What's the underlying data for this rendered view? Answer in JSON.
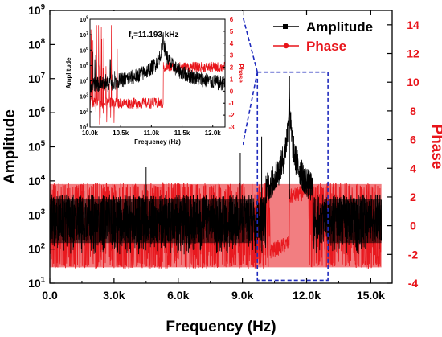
{
  "chart_data": {
    "type": "line",
    "xlabel": "Frequency (Hz)",
    "ylabel_left": "Amplitude",
    "ylabel_right": "Phase",
    "y_left_scale": "log",
    "xlim": [
      0,
      16000
    ],
    "ylim_left": [
      10,
      1000000000
    ],
    "ylim_right": [
      -4,
      15
    ],
    "x_ticks": [
      0,
      3000,
      6000,
      9000,
      12000,
      15000
    ],
    "x_tick_labels": [
      "0.0",
      "3.0k",
      "6.0k",
      "9.0k",
      "12.0k",
      "15.0k"
    ],
    "y_left_ticks": [
      10,
      100,
      1000,
      10000,
      100000,
      1000000,
      10000000,
      100000000,
      1000000000
    ],
    "y_left_tick_labels": [
      {
        "base": "10",
        "exp": "1"
      },
      {
        "base": "10",
        "exp": "2"
      },
      {
        "base": "10",
        "exp": "3"
      },
      {
        "base": "10",
        "exp": "4"
      },
      {
        "base": "10",
        "exp": "5"
      },
      {
        "base": "10",
        "exp": "6"
      },
      {
        "base": "10",
        "exp": "7"
      },
      {
        "base": "10",
        "exp": "8"
      },
      {
        "base": "10",
        "exp": "9"
      }
    ],
    "y_right_ticks": [
      -4,
      -2,
      0,
      2,
      4,
      6,
      8,
      10,
      12,
      14
    ],
    "y_right_tick_labels": [
      "-4",
      "-2",
      "0",
      "2",
      "4",
      "6",
      "8",
      "10",
      "12",
      "14"
    ],
    "legend": {
      "placement": "top-right",
      "items": [
        {
          "label": "Amplitude",
          "color": "#000000",
          "marker": "square"
        },
        {
          "label": "Phase",
          "color": "#e8141a",
          "marker": "circle"
        }
      ]
    },
    "series": [
      {
        "name": "Amplitude",
        "axis": "left",
        "color": "#000000",
        "noise_floor_band": [
          70,
          4000
        ],
        "resonance_peak": {
          "x": 11193,
          "y": 12000000
        },
        "spikes": [
          [
            1600,
            5000
          ],
          [
            4500,
            25000
          ],
          [
            8900,
            90000
          ],
          [
            9900,
            200000
          ]
        ]
      },
      {
        "name": "Phase",
        "axis": "right",
        "color": "#e8141a",
        "band_below_resonance": [
          -3,
          3
        ],
        "band_above_resonance": [
          -3,
          3
        ],
        "resonance_x": 11193
      }
    ],
    "zoom_box": {
      "x_range": [
        9700,
        13000
      ],
      "y_range_right": [
        -3.8,
        10.7
      ]
    },
    "inset": {
      "annotation": {
        "base": "f",
        "sub": "r",
        "text": "=11.193 kHz"
      },
      "xlabel": "Frequency (Hz)",
      "ylabel_left": "Amplitude",
      "ylabel_right": "Phase",
      "xlim": [
        10000,
        12200
      ],
      "ylim_left": [
        10,
        100000000
      ],
      "ylim_right": [
        -3,
        6
      ],
      "x_ticks": [
        10000,
        10500,
        11000,
        11500,
        12000
      ],
      "x_tick_labels": [
        "10.0k",
        "10.5k",
        "11.0k",
        "11.5k",
        "12.0k"
      ],
      "y_left_ticks": [
        10,
        100,
        1000,
        10000,
        100000,
        1000000,
        10000000,
        100000000
      ],
      "y_left_tick_labels": [
        {
          "base": "10",
          "exp": "1"
        },
        {
          "base": "10",
          "exp": "2"
        },
        {
          "base": "10",
          "exp": "3"
        },
        {
          "base": "10",
          "exp": "4"
        },
        {
          "base": "10",
          "exp": "5"
        },
        {
          "base": "10",
          "exp": "6"
        },
        {
          "base": "10",
          "exp": "7"
        },
        {
          "base": "10",
          "exp": "8"
        }
      ],
      "y_right_ticks": [
        -3,
        -2,
        -1,
        0,
        1,
        2,
        3,
        4,
        5,
        6
      ],
      "y_right_tick_labels": [
        "-3",
        "-2",
        "-1",
        "0",
        "1",
        "2",
        "3",
        "4",
        "5",
        "6"
      ],
      "phase_below_resonance": -1,
      "phase_above_resonance": 2
    }
  }
}
